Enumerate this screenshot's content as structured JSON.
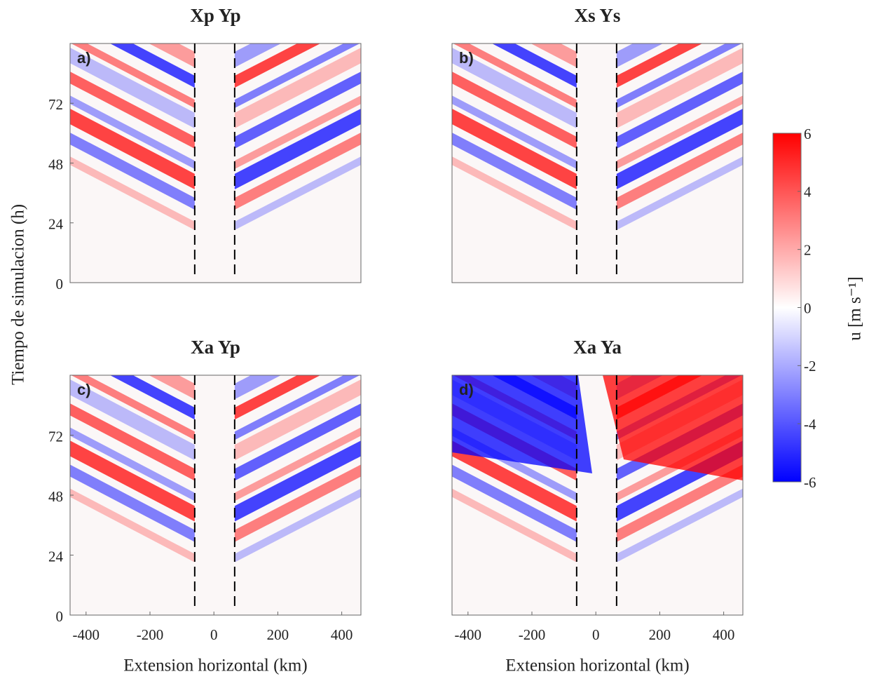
{
  "figure": {
    "ylabel": "Tiempo de simulacion (h)",
    "colorbar": {
      "label": "u [m s⁻¹]",
      "clim": [
        -6,
        6
      ],
      "ticks": [
        6,
        4,
        2,
        0,
        -2,
        -4,
        -6
      ],
      "colors": [
        "#0000ff",
        "#ffffff",
        "#ff0000"
      ]
    }
  },
  "chart_data": [
    {
      "type": "heatmap",
      "title": "Xp Yp",
      "panel_label": "a)",
      "xlim": [
        -450,
        460
      ],
      "ylim": [
        0,
        96
      ],
      "yticks": [
        0,
        24,
        48,
        72
      ],
      "dashed_lines": [
        -60,
        65
      ]
    },
    {
      "type": "heatmap",
      "title": "Xs Ys",
      "panel_label": "b)",
      "xlim": [
        -450,
        460
      ],
      "ylim": [
        0,
        96
      ],
      "dashed_lines": [
        -60,
        65
      ]
    },
    {
      "type": "heatmap",
      "title": "Xa Yp",
      "panel_label": "c)",
      "xlim": [
        -450,
        460
      ],
      "ylim": [
        0,
        96
      ],
      "yticks": [
        0,
        24,
        48,
        72
      ],
      "xticks": [
        -400,
        -200,
        0,
        200,
        400
      ],
      "xlabel": "Extension horizontal (km)",
      "dashed_lines": [
        -60,
        65
      ]
    },
    {
      "type": "heatmap",
      "title": "Xa Ya",
      "panel_label": "d)",
      "xlim": [
        -450,
        460
      ],
      "ylim": [
        0,
        96
      ],
      "xticks": [
        -400,
        -200,
        0,
        200,
        400
      ],
      "xlabel": "Extension horizontal (km)",
      "dashed_lines": [
        -60,
        65
      ]
    }
  ]
}
